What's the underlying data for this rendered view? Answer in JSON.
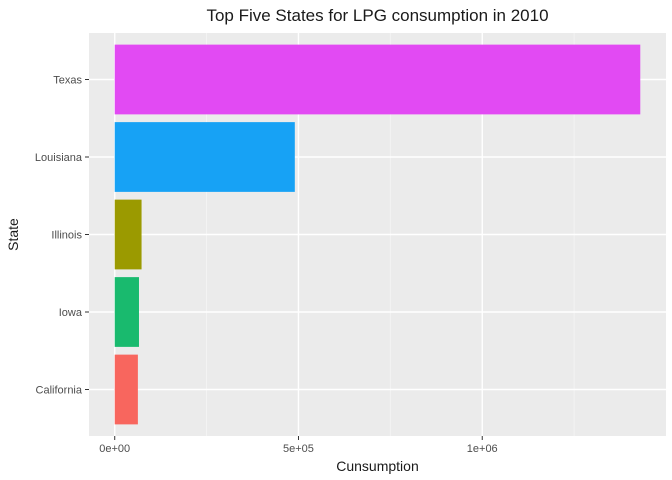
{
  "chart_data": {
    "type": "bar",
    "orientation": "horizontal",
    "title": "Top Five States for LPG consumption in 2010",
    "xlabel": "Cunsumption",
    "ylabel": "State",
    "categories": [
      "Texas",
      "Louisiana",
      "Illinois",
      "Iowa",
      "California"
    ],
    "values": [
      1430000,
      490000,
      73000,
      66000,
      63000
    ],
    "colors": [
      "#E24AF3",
      "#17A2F5",
      "#9B9A00",
      "#19BA6E",
      "#F8665E"
    ],
    "xlim": [
      -70000,
      1500000
    ],
    "xticks": [
      {
        "value": 0,
        "label": "0e+00"
      },
      {
        "value": 500000,
        "label": "5e+05"
      },
      {
        "value": 1000000,
        "label": "1e+06"
      }
    ],
    "x_minor_ticks": [
      250000,
      750000,
      1250000
    ],
    "grid": true,
    "legend": "none",
    "panel_background": "#EBEBEB"
  }
}
